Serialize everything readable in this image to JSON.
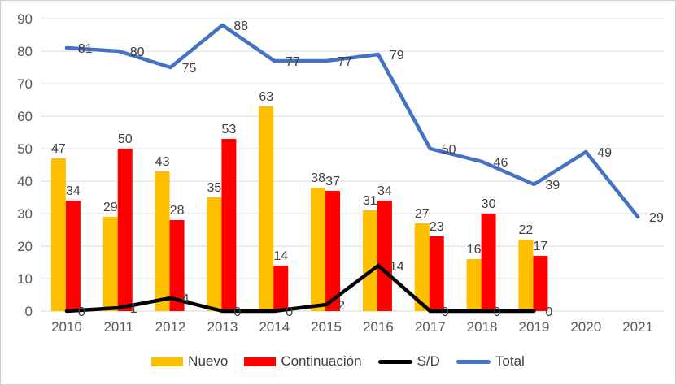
{
  "chart_data": {
    "type": "combo-bar-line",
    "title": "",
    "xlabel": "",
    "ylabel": "",
    "categories": [
      "2010",
      "2011",
      "2012",
      "2013",
      "2014",
      "2015",
      "2016",
      "2017",
      "2018",
      "2019",
      "2020",
      "2021"
    ],
    "series": [
      {
        "name": "Nuevo",
        "kind": "bar",
        "color": "#FFC000",
        "values": [
          47,
          29,
          43,
          35,
          63,
          38,
          31,
          27,
          16,
          22,
          null,
          null
        ]
      },
      {
        "name": "Continuación",
        "kind": "bar",
        "color": "#FF0000",
        "values": [
          34,
          50,
          28,
          53,
          14,
          37,
          34,
          23,
          30,
          17,
          null,
          null
        ]
      },
      {
        "name": "S/D",
        "kind": "line",
        "color": "#000000",
        "values": [
          0,
          1,
          4,
          0,
          0,
          2,
          14,
          0,
          0,
          0,
          null,
          null
        ]
      },
      {
        "name": "Total",
        "kind": "line",
        "color": "#4472C4",
        "values": [
          81,
          80,
          75,
          88,
          77,
          77,
          79,
          50,
          46,
          39,
          49,
          29
        ]
      }
    ],
    "y_axis": {
      "min": 0,
      "max": 90,
      "step": 10,
      "tick_labels": [
        "0",
        "10",
        "20",
        "30",
        "40",
        "50",
        "60",
        "70",
        "80",
        "90"
      ]
    },
    "grid": true,
    "data_labels": true,
    "legend_position": "bottom",
    "legend": [
      "Nuevo",
      "Continuación",
      "S/D",
      "Total"
    ]
  },
  "style": {
    "background": "#FFFFFF",
    "border_color": "#D0D0D0",
    "gridline_color": "#D9D9D9",
    "axis_line_color": "#D9D9D9",
    "tick_label_color": "#595959",
    "data_label_color": "#404040",
    "legend_label_color": "#404040"
  }
}
